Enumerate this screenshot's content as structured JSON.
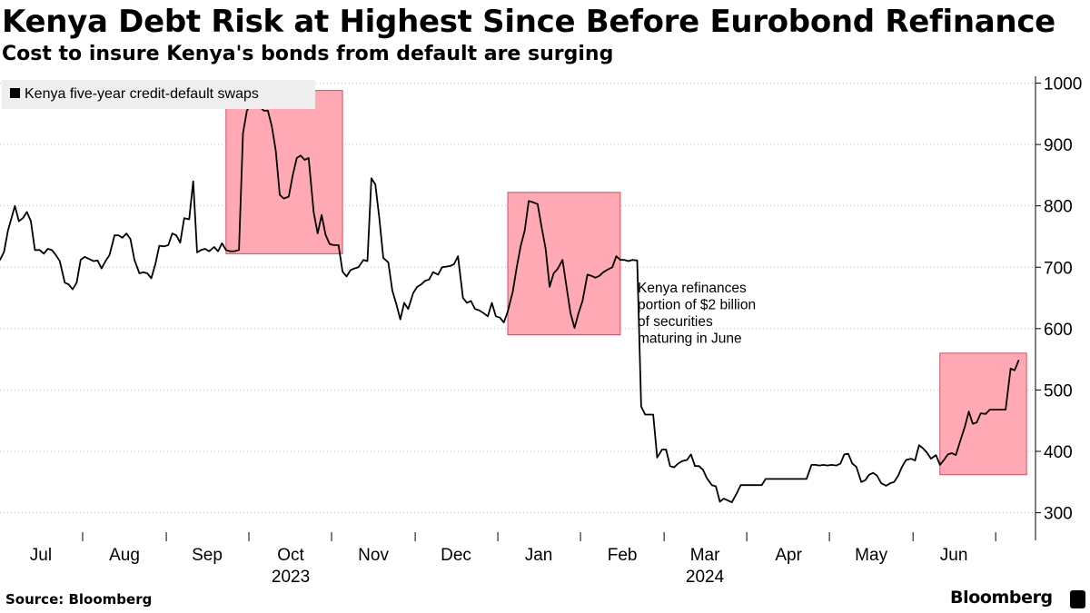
{
  "header": {
    "title": "Kenya Debt Risk at Highest Since Before Eurobond Refinance",
    "subtitle": "Cost to insure Kenya's bonds from default are surging"
  },
  "footer": {
    "source": "Source: Bloomberg",
    "brand": "Bloomberg"
  },
  "colors": {
    "line": "#000000",
    "highlight_fill": "#ff9aa8",
    "highlight_stroke": "#d94c5c",
    "gridline": "#bfbfbf",
    "legend_bg": "#eeeeee"
  },
  "chart_data": {
    "type": "line",
    "title": "Kenya Debt Risk at Highest Since Before Eurobond Refinance",
    "subtitle": "Cost to insure Kenya's bonds from default are surging",
    "xlabel": "",
    "ylabel": "",
    "ylim": [
      255,
      1020
    ],
    "xlim": [
      2023.5,
      2024.54
    ],
    "grid": true,
    "legend": {
      "position": "top-left",
      "entries": [
        "Kenya five-year credit-default swaps"
      ]
    },
    "y_ticks": [
      "1000",
      "900",
      "800",
      "700",
      "600",
      "500",
      "400",
      "300"
    ],
    "y_tick_values": [
      1000,
      900,
      800,
      700,
      600,
      500,
      400,
      300
    ],
    "x_ticks": [
      {
        "label": "Jul",
        "t": 2023.541
      },
      {
        "label": "Aug",
        "t": 2023.625
      },
      {
        "label": "Sep",
        "t": 2023.708
      },
      {
        "label": "Oct",
        "t": 2023.792
      },
      {
        "label": "Nov",
        "t": 2023.875
      },
      {
        "label": "Dec",
        "t": 2023.958
      },
      {
        "label": "Jan",
        "t": 2024.041
      },
      {
        "label": "Feb",
        "t": 2024.125
      },
      {
        "label": "Mar",
        "t": 2024.208
      },
      {
        "label": "Apr",
        "t": 2024.292
      },
      {
        "label": "May",
        "t": 2024.375
      },
      {
        "label": "Jun",
        "t": 2024.458
      }
    ],
    "year_labels": [
      {
        "label": "2023",
        "t": 2023.792
      },
      {
        "label": "2024",
        "t": 2024.208
      }
    ],
    "month_separators": [
      2023.583,
      2023.667,
      2023.75,
      2023.833,
      2023.917,
      2024.0,
      2024.083,
      2024.167,
      2024.25,
      2024.333,
      2024.417,
      2024.5
    ],
    "series": [
      {
        "name": "Kenya five-year credit-default swaps",
        "points": [
          [
            2023.5,
            712
          ],
          [
            2023.504,
            725
          ],
          [
            2023.508,
            760
          ],
          [
            2023.515,
            800
          ],
          [
            2023.519,
            775
          ],
          [
            2023.523,
            780
          ],
          [
            2023.527,
            790
          ],
          [
            2023.531,
            775
          ],
          [
            2023.535,
            728
          ],
          [
            2023.54,
            728
          ],
          [
            2023.544,
            722
          ],
          [
            2023.548,
            730
          ],
          [
            2023.552,
            728
          ],
          [
            2023.556,
            720
          ],
          [
            2023.56,
            710
          ],
          [
            2023.565,
            675
          ],
          [
            2023.569,
            672
          ],
          [
            2023.573,
            664
          ],
          [
            2023.577,
            675
          ],
          [
            2023.581,
            712
          ],
          [
            2023.585,
            717
          ],
          [
            2023.59,
            713
          ],
          [
            2023.594,
            710
          ],
          [
            2023.598,
            711
          ],
          [
            2023.602,
            698
          ],
          [
            2023.606,
            710
          ],
          [
            2023.61,
            720
          ],
          [
            2023.615,
            752
          ],
          [
            2023.619,
            752
          ],
          [
            2023.623,
            748
          ],
          [
            2023.627,
            755
          ],
          [
            2023.631,
            746
          ],
          [
            2023.635,
            712
          ],
          [
            2023.64,
            690
          ],
          [
            2023.644,
            692
          ],
          [
            2023.648,
            690
          ],
          [
            2023.652,
            682
          ],
          [
            2023.656,
            705
          ],
          [
            2023.66,
            735
          ],
          [
            2023.665,
            734
          ],
          [
            2023.669,
            736
          ],
          [
            2023.673,
            755
          ],
          [
            2023.677,
            752
          ],
          [
            2023.681,
            740
          ],
          [
            2023.685,
            780
          ],
          [
            2023.69,
            778
          ],
          [
            2023.694,
            840
          ],
          [
            2023.698,
            724
          ],
          [
            2023.702,
            728
          ],
          [
            2023.706,
            730
          ],
          [
            2023.71,
            726
          ],
          [
            2023.715,
            733
          ],
          [
            2023.719,
            726
          ],
          [
            2023.723,
            739
          ],
          [
            2023.727,
            728
          ],
          [
            2023.731,
            726
          ],
          [
            2023.735,
            726
          ],
          [
            2023.74,
            728
          ],
          [
            2023.744,
            918
          ],
          [
            2023.748,
            955
          ],
          [
            2023.752,
            965
          ],
          [
            2023.756,
            963
          ],
          [
            2023.76,
            963
          ],
          [
            2023.765,
            955
          ],
          [
            2023.769,
            955
          ],
          [
            2023.773,
            930
          ],
          [
            2023.777,
            890
          ],
          [
            2023.781,
            818
          ],
          [
            2023.785,
            812
          ],
          [
            2023.79,
            815
          ],
          [
            2023.794,
            850
          ],
          [
            2023.798,
            878
          ],
          [
            2023.802,
            882
          ],
          [
            2023.806,
            875
          ],
          [
            2023.81,
            878
          ],
          [
            2023.815,
            790
          ],
          [
            2023.819,
            755
          ],
          [
            2023.823,
            785
          ],
          [
            2023.827,
            753
          ],
          [
            2023.831,
            738
          ],
          [
            2023.835,
            736
          ],
          [
            2023.84,
            736
          ],
          [
            2023.844,
            693
          ],
          [
            2023.848,
            685
          ],
          [
            2023.852,
            695
          ],
          [
            2023.856,
            698
          ],
          [
            2023.86,
            700
          ],
          [
            2023.865,
            712
          ],
          [
            2023.869,
            710
          ],
          [
            2023.873,
            845
          ],
          [
            2023.877,
            835
          ],
          [
            2023.881,
            780
          ],
          [
            2023.885,
            715
          ],
          [
            2023.89,
            708
          ],
          [
            2023.894,
            662
          ],
          [
            2023.898,
            640
          ],
          [
            2023.902,
            615
          ],
          [
            2023.906,
            642
          ],
          [
            2023.91,
            632
          ],
          [
            2023.915,
            658
          ],
          [
            2023.919,
            668
          ],
          [
            2023.923,
            672
          ],
          [
            2023.927,
            678
          ],
          [
            2023.931,
            680
          ],
          [
            2023.935,
            692
          ],
          [
            2023.94,
            688
          ],
          [
            2023.944,
            700
          ],
          [
            2023.948,
            701
          ],
          [
            2023.952,
            702
          ],
          [
            2023.956,
            705
          ],
          [
            2023.96,
            718
          ],
          [
            2023.965,
            650
          ],
          [
            2023.969,
            642
          ],
          [
            2023.973,
            645
          ],
          [
            2023.977,
            632
          ],
          [
            2023.981,
            630
          ],
          [
            2023.985,
            626
          ],
          [
            2023.99,
            620
          ],
          [
            2023.994,
            642
          ],
          [
            2023.998,
            620
          ],
          [
            2024.002,
            618
          ],
          [
            2024.006,
            610
          ],
          [
            2024.01,
            628
          ],
          [
            2024.015,
            660
          ],
          [
            2024.019,
            700
          ],
          [
            2024.023,
            735
          ],
          [
            2024.027,
            760
          ],
          [
            2024.031,
            808
          ],
          [
            2024.035,
            806
          ],
          [
            2024.04,
            803
          ],
          [
            2024.044,
            765
          ],
          [
            2024.048,
            730
          ],
          [
            2024.052,
            668
          ],
          [
            2024.056,
            690
          ],
          [
            2024.06,
            697
          ],
          [
            2024.065,
            712
          ],
          [
            2024.069,
            668
          ],
          [
            2024.073,
            625
          ],
          [
            2024.077,
            601
          ],
          [
            2024.081,
            625
          ],
          [
            2024.085,
            645
          ],
          [
            2024.09,
            688
          ],
          [
            2024.094,
            686
          ],
          [
            2024.098,
            683
          ],
          [
            2024.102,
            686
          ],
          [
            2024.106,
            692
          ],
          [
            2024.11,
            696
          ],
          [
            2024.115,
            700
          ],
          [
            2024.119,
            718
          ],
          [
            2024.123,
            712
          ],
          [
            2024.127,
            712
          ],
          [
            2024.131,
            710
          ],
          [
            2024.135,
            712
          ],
          [
            2024.14,
            711
          ],
          [
            2024.144,
            473
          ],
          [
            2024.148,
            460
          ],
          [
            2024.152,
            460
          ],
          [
            2024.156,
            460
          ],
          [
            2024.16,
            390
          ],
          [
            2024.165,
            403
          ],
          [
            2024.169,
            403
          ],
          [
            2024.173,
            376
          ],
          [
            2024.177,
            374
          ],
          [
            2024.181,
            380
          ],
          [
            2024.185,
            384
          ],
          [
            2024.19,
            386
          ],
          [
            2024.194,
            395
          ],
          [
            2024.198,
            376
          ],
          [
            2024.202,
            376
          ],
          [
            2024.206,
            370
          ],
          [
            2024.21,
            356
          ],
          [
            2024.215,
            345
          ],
          [
            2024.219,
            343
          ],
          [
            2024.223,
            318
          ],
          [
            2024.227,
            323
          ],
          [
            2024.231,
            320
          ],
          [
            2024.235,
            317
          ],
          [
            2024.24,
            332
          ],
          [
            2024.244,
            345
          ],
          [
            2024.248,
            345
          ],
          [
            2024.256,
            345
          ],
          [
            2024.265,
            345
          ],
          [
            2024.269,
            355
          ],
          [
            2024.275,
            355
          ],
          [
            2024.285,
            355
          ],
          [
            2024.295,
            355
          ],
          [
            2024.305,
            355
          ],
          [
            2024.31,
            355
          ],
          [
            2024.315,
            378
          ],
          [
            2024.319,
            378
          ],
          [
            2024.323,
            377
          ],
          [
            2024.327,
            378
          ],
          [
            2024.331,
            377
          ],
          [
            2024.335,
            378
          ],
          [
            2024.34,
            377
          ],
          [
            2024.344,
            380
          ],
          [
            2024.348,
            395
          ],
          [
            2024.352,
            396
          ],
          [
            2024.356,
            380
          ],
          [
            2024.36,
            375
          ],
          [
            2024.365,
            350
          ],
          [
            2024.369,
            353
          ],
          [
            2024.373,
            362
          ],
          [
            2024.377,
            365
          ],
          [
            2024.381,
            360
          ],
          [
            2024.385,
            348
          ],
          [
            2024.39,
            344
          ],
          [
            2024.394,
            348
          ],
          [
            2024.398,
            350
          ],
          [
            2024.402,
            360
          ],
          [
            2024.406,
            375
          ],
          [
            2024.41,
            386
          ],
          [
            2024.415,
            388
          ],
          [
            2024.419,
            385
          ],
          [
            2024.423,
            410
          ],
          [
            2024.427,
            405
          ],
          [
            2024.431,
            398
          ],
          [
            2024.435,
            388
          ],
          [
            2024.44,
            394
          ],
          [
            2024.444,
            378
          ],
          [
            2024.448,
            386
          ],
          [
            2024.452,
            395
          ],
          [
            2024.456,
            397
          ],
          [
            2024.46,
            394
          ],
          [
            2024.465,
            420
          ],
          [
            2024.469,
            440
          ],
          [
            2024.473,
            465
          ],
          [
            2024.477,
            445
          ],
          [
            2024.481,
            447
          ],
          [
            2024.485,
            462
          ],
          [
            2024.49,
            461
          ],
          [
            2024.494,
            468
          ],
          [
            2024.498,
            468
          ],
          [
            2024.502,
            468
          ],
          [
            2024.506,
            468
          ],
          [
            2024.51,
            468
          ],
          [
            2024.515,
            535
          ],
          [
            2024.519,
            532
          ],
          [
            2024.523,
            548
          ]
        ]
      }
    ],
    "highlight_boxes": [
      {
        "t0": 2023.727,
        "t1": 2023.844,
        "y0": 722,
        "y1": 988
      },
      {
        "t0": 2024.01,
        "t1": 2024.123,
        "y0": 590,
        "y1": 822
      },
      {
        "t0": 2024.444,
        "t1": 2024.531,
        "y0": 362,
        "y1": 560
      }
    ],
    "annotations": [
      {
        "id": "refinance-note",
        "t": 2024.148,
        "y": 700,
        "lines": [
          "Kenya refinances",
          "portion of $2 billion",
          "of securities",
          "maturing in June"
        ]
      }
    ]
  }
}
